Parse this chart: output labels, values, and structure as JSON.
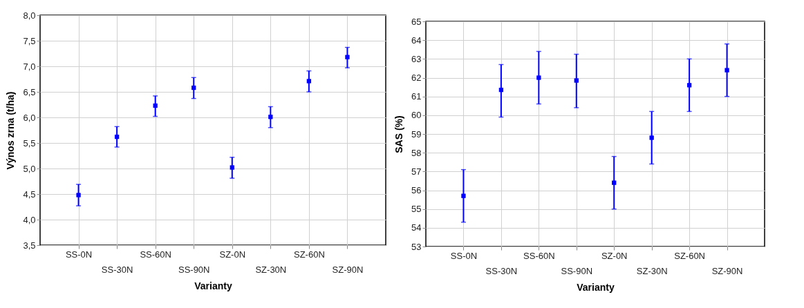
{
  "chart_data": [
    {
      "type": "scatter",
      "xlabel": "Varianty",
      "ylabel": "Výnos zrna (t/ha)",
      "categories": [
        "SS-0N",
        "SS-30N",
        "SS-60N",
        "SS-90N",
        "SZ-0N",
        "SZ-30N",
        "SZ-60N",
        "SZ-90N"
      ],
      "series": [
        {
          "color": "#0000ff",
          "values": [
            4.48,
            5.62,
            6.23,
            6.58,
            5.02,
            6.01,
            6.71,
            7.18
          ],
          "errors": [
            [
              4.27,
              4.69
            ],
            [
              5.42,
              5.82
            ],
            [
              6.02,
              6.42
            ],
            [
              6.37,
              6.78
            ],
            [
              4.81,
              5.22
            ],
            [
              5.8,
              6.21
            ],
            [
              6.5,
              6.91
            ],
            [
              6.97,
              7.37
            ]
          ]
        }
      ],
      "ylim": [
        3.5,
        8
      ],
      "yticks": [
        {
          "value": 3.5,
          "label": "3,5"
        },
        {
          "value": 4,
          "label": "4,0"
        },
        {
          "value": 4.5,
          "label": "4,5"
        },
        {
          "value": 5,
          "label": "5,0"
        },
        {
          "value": 5.5,
          "label": "5,5"
        },
        {
          "value": 6,
          "label": "6,0"
        },
        {
          "value": 6.5,
          "label": "6,5"
        },
        {
          "value": 7,
          "label": "7,0"
        },
        {
          "value": 7.5,
          "label": "7,5"
        },
        {
          "value": 8,
          "label": "8,0"
        }
      ],
      "grid": true,
      "marker": "square"
    },
    {
      "type": "scatter",
      "xlabel": "Varianty",
      "ylabel": "SAS (%)",
      "categories": [
        "SS-0N",
        "SS-30N",
        "SS-60N",
        "SS-90N",
        "SZ-0N",
        "SZ-30N",
        "SZ-60N",
        "SZ-90N"
      ],
      "series": [
        {
          "color": "#0000ff",
          "values": [
            55.7,
            61.35,
            62,
            61.85,
            56.4,
            58.8,
            61.6,
            62.4
          ],
          "errors": [
            [
              54.3,
              57.1
            ],
            [
              59.9,
              62.7
            ],
            [
              60.6,
              63.4
            ],
            [
              60.4,
              63.25
            ],
            [
              55,
              57.8
            ],
            [
              57.4,
              60.2
            ],
            [
              60.2,
              63
            ],
            [
              61,
              63.8
            ]
          ]
        }
      ],
      "ylim": [
        53,
        65
      ],
      "yticks": [
        53,
        54,
        55,
        56,
        57,
        58,
        59,
        60,
        61,
        62,
        63,
        64,
        65
      ],
      "grid": true,
      "marker": "square"
    }
  ]
}
